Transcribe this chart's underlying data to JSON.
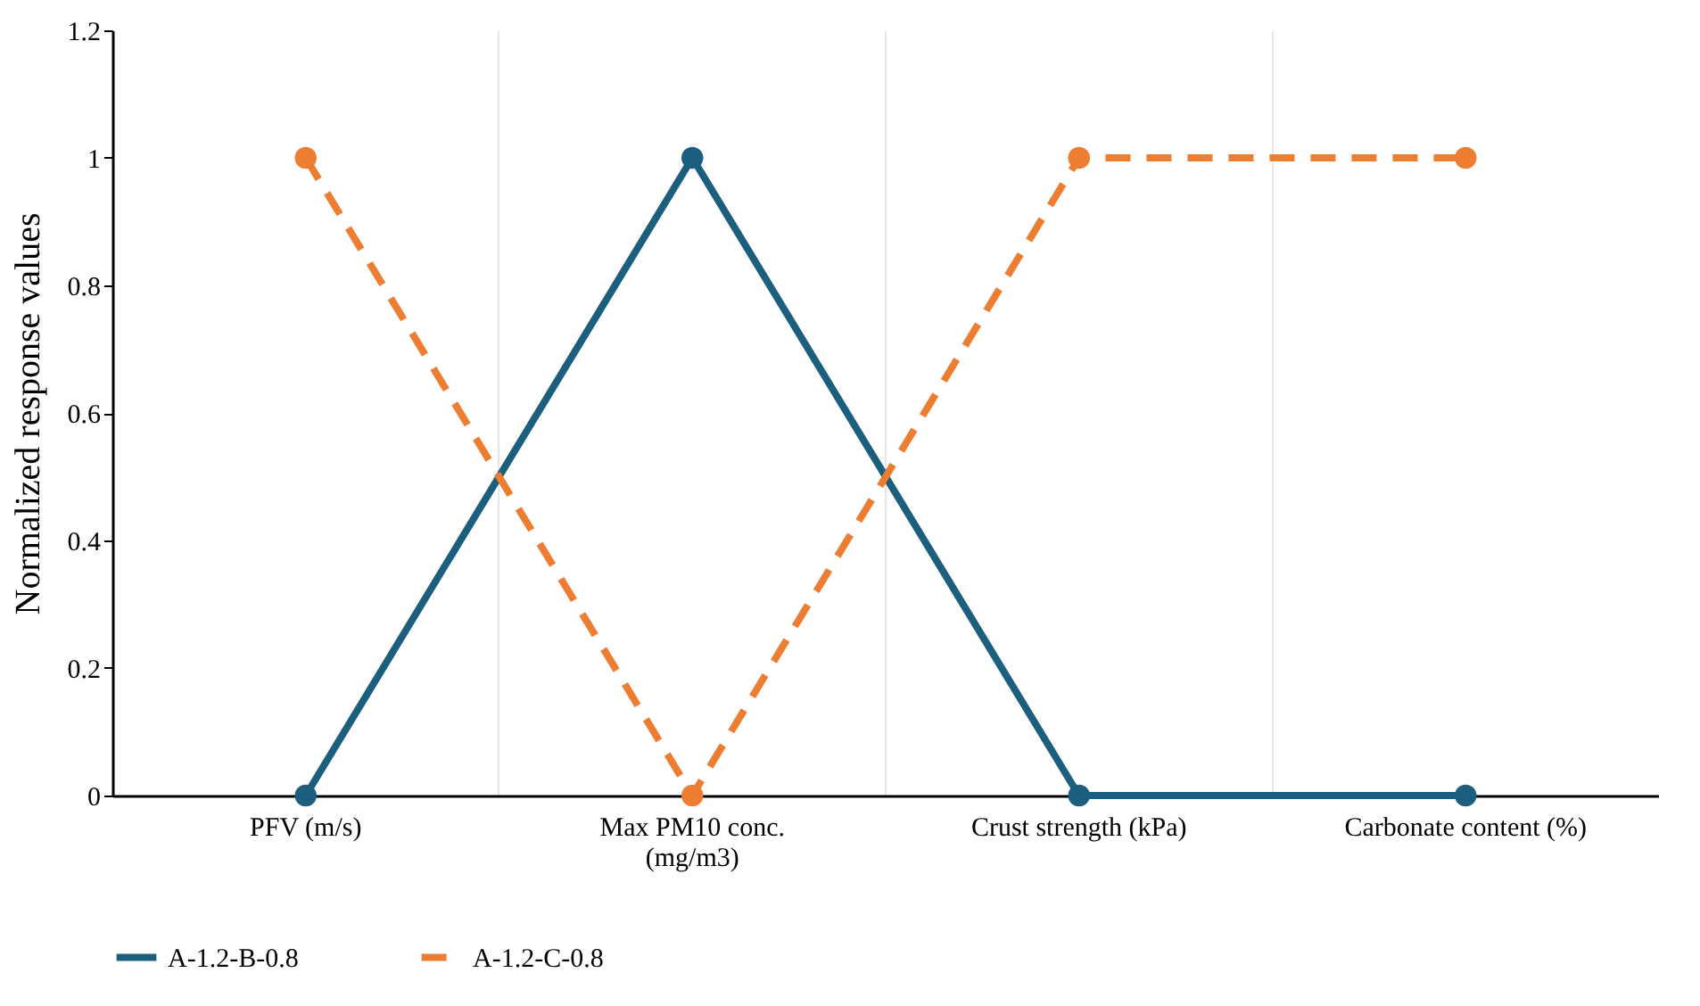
{
  "chart_data": {
    "type": "line",
    "ylabel": "Normalized response values",
    "categories": [
      "PFV (m/s)",
      "Max PM10 conc.\n(mg/m3)",
      "Crust strength (kPa)",
      "Carbonate content (%)"
    ],
    "series": [
      {
        "name": "A-1.2-B-0.8",
        "color": "#1b5e7e",
        "line_style": "solid",
        "values": [
          0,
          1,
          0,
          0
        ]
      },
      {
        "name": "A-1.2-C-0.8",
        "color": "#ed7d31",
        "line_style": "dashed",
        "values": [
          1,
          0,
          1,
          1
        ]
      }
    ],
    "ylim": [
      0,
      1.2
    ],
    "yticks": [
      0,
      0.2,
      0.4,
      0.6,
      0.8,
      1,
      1.2
    ],
    "grid": "x",
    "legend": "bottom",
    "marker": "circle"
  }
}
